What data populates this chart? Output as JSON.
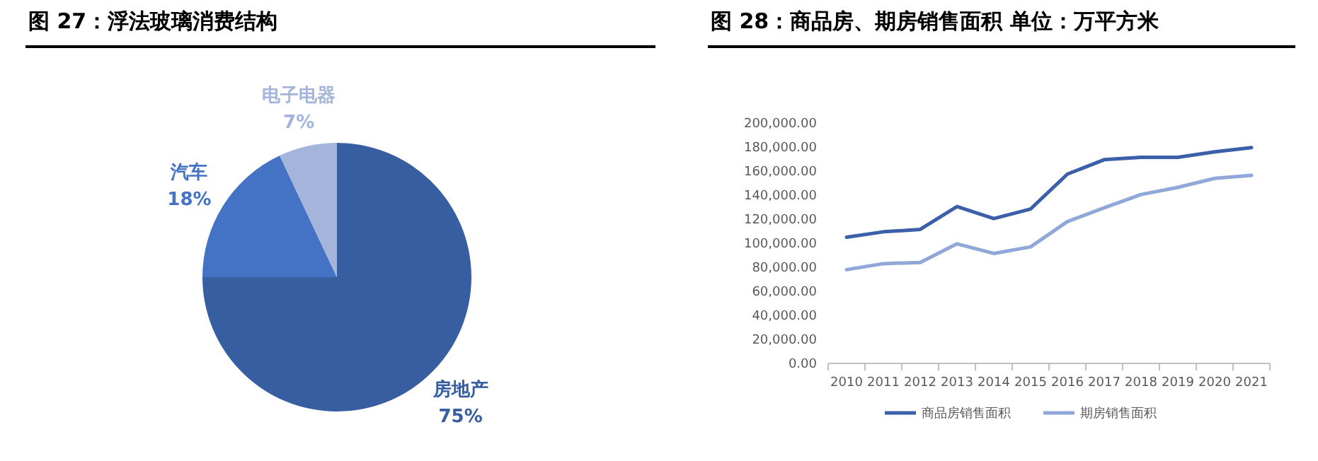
{
  "chart_data": [
    {
      "type": "pie",
      "title": "图 27：浮法玻璃消费结构",
      "categories": [
        "房地产",
        "汽车",
        "电子电器"
      ],
      "values": [
        75,
        18,
        7
      ],
      "value_labels": [
        "75%",
        "18%",
        "7%"
      ],
      "colors": [
        "#365ea0",
        "#4472c4",
        "#a5b4da"
      ],
      "legend": false
    },
    {
      "type": "line",
      "title": "图 28：商品房、期房销售面积 单位：万平方米",
      "categories": [
        "2010",
        "2011",
        "2012",
        "2013",
        "2014",
        "2015",
        "2016",
        "2017",
        "2018",
        "2019",
        "2020",
        "2021"
      ],
      "series": [
        {
          "name": "商品房销售面积",
          "color": "#3b5fa8",
          "values": [
            105000,
            109500,
            111500,
            130500,
            120500,
            128500,
            157500,
            169500,
            171500,
            171500,
            176000,
            179500
          ]
        },
        {
          "name": "期房销售面积",
          "color": "#8fa7d9",
          "values": [
            78000,
            83000,
            84000,
            99500,
            91500,
            97000,
            118000,
            129500,
            140500,
            146500,
            154000,
            156500
          ]
        }
      ],
      "ylim": [
        0,
        200000
      ],
      "yticks": [
        {
          "value": 0,
          "label": "0.00"
        },
        {
          "value": 20000,
          "label": "20,000.00"
        },
        {
          "value": 40000,
          "label": "40,000.00"
        },
        {
          "value": 60000,
          "label": "60,000.00"
        },
        {
          "value": 80000,
          "label": "80,000.00"
        },
        {
          "value": 100000,
          "label": "100,000.00"
        },
        {
          "value": 120000,
          "label": "120,000.00"
        },
        {
          "value": 140000,
          "label": "140,000.00"
        },
        {
          "value": 160000,
          "label": "160,000.00"
        },
        {
          "value": 180000,
          "label": "180,000.00"
        },
        {
          "value": 200000,
          "label": "200,000.00"
        }
      ],
      "grid": false,
      "legend": "bottom",
      "marker": "none",
      "line_style": "solid"
    }
  ]
}
